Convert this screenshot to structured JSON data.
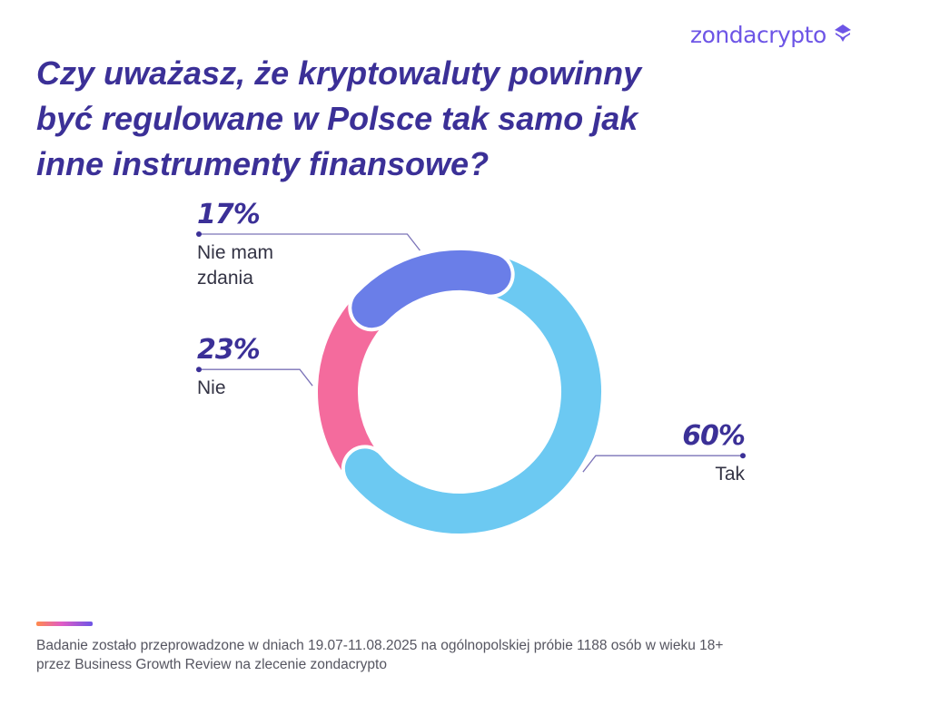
{
  "brand": {
    "name": "zondacrypto"
  },
  "title_lines": [
    "Czy uważasz, że kryptowaluty powinny",
    "być regulowane w Polsce tak samo jak",
    "inne instrumenty finansowe?"
  ],
  "chart_data": {
    "type": "pie",
    "variant": "donut",
    "unit": "%",
    "slices": [
      {
        "label": "Tak",
        "label_lines": [
          "Tak"
        ],
        "value": 60,
        "display": "60%",
        "color": "#6cc9f2"
      },
      {
        "label": "Nie",
        "label_lines": [
          "Nie"
        ],
        "value": 23,
        "display": "23%",
        "color": "#f46b9d"
      },
      {
        "label": "Nie mam zdania",
        "label_lines": [
          "Nie mam",
          "zdania"
        ],
        "value": 17,
        "display": "17%",
        "color": "#6a7ee8"
      }
    ],
    "legend": "none"
  },
  "footnote": {
    "lines": [
      "Badanie zostało przeprowadzone w dniach 19.07-11.08.2025 na ogólnopolskiej próbie 1188 osób w wieku 18+",
      "przez Business Growth Review na zlecenie zondacrypto"
    ]
  },
  "colors": {
    "title": "#3b3097",
    "brand": "#6d55e6",
    "leader": "#7b73b8",
    "text": "#333344"
  }
}
